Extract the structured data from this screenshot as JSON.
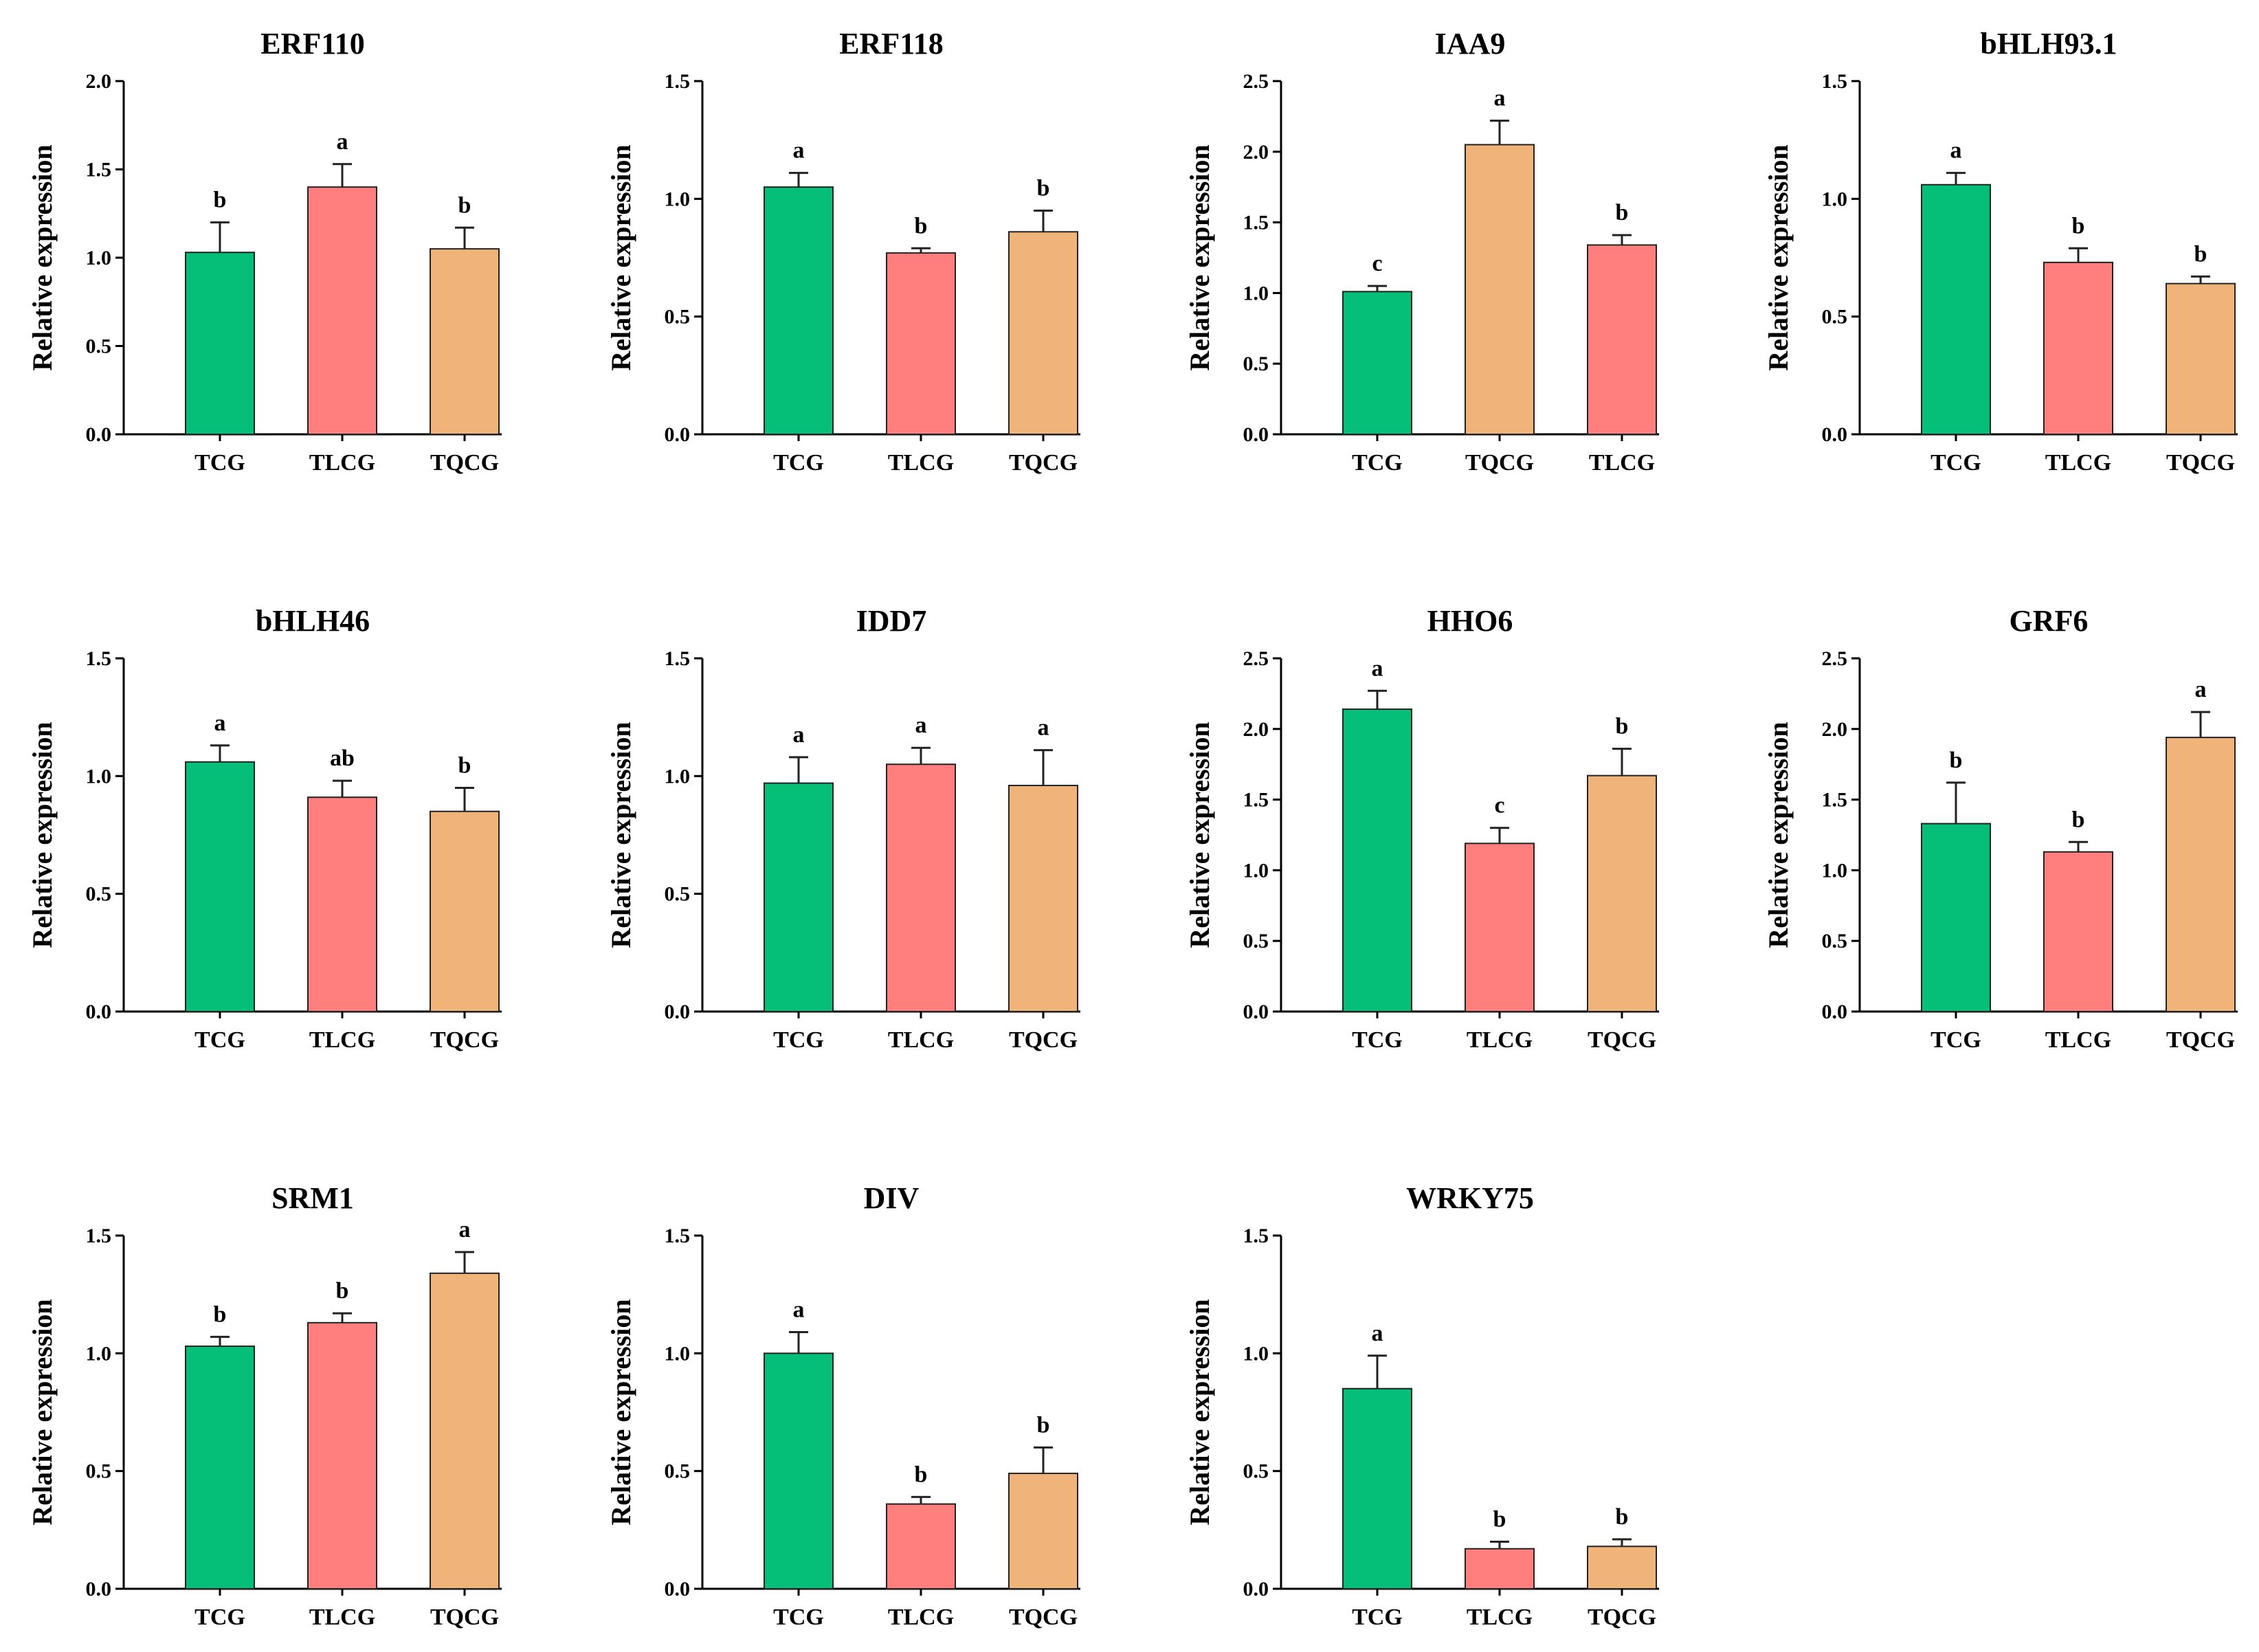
{
  "colors": {
    "TCG": "#05BE78",
    "TLCG": "#FF7F7F",
    "TQCG": "#F0B47B",
    "axis": "#000000",
    "bar_edge": "#222222"
  },
  "chart_data": [
    {
      "type": "bar",
      "title": "ERF110",
      "ylabel": "Relative expression",
      "ylim": [
        0,
        2.0
      ],
      "yticks": [
        "0.0",
        "0.5",
        "1.0",
        "1.5",
        "2.0"
      ],
      "categories": [
        "TCG",
        "TLCG",
        "TQCG"
      ],
      "values": [
        1.03,
        1.4,
        1.05
      ],
      "errors": [
        0.17,
        0.13,
        0.12
      ],
      "significance": [
        "b",
        "a",
        "b"
      ]
    },
    {
      "type": "bar",
      "title": "ERF118",
      "ylabel": "Relative expression",
      "ylim": [
        0,
        1.5
      ],
      "yticks": [
        "0.0",
        "0.5",
        "1.0",
        "1.5"
      ],
      "categories": [
        "TCG",
        "TLCG",
        "TQCG"
      ],
      "values": [
        1.05,
        0.77,
        0.86
      ],
      "errors": [
        0.06,
        0.02,
        0.09
      ],
      "significance": [
        "a",
        "b",
        "b"
      ]
    },
    {
      "type": "bar",
      "title": "IAA9",
      "ylabel": "Relative expression",
      "ylim": [
        0,
        2.5
      ],
      "yticks": [
        "0.0",
        "0.5",
        "1.0",
        "1.5",
        "2.0",
        "2.5"
      ],
      "categories": [
        "TCG",
        "TQCG",
        "TLCG"
      ],
      "values": [
        1.01,
        2.05,
        1.34
      ],
      "errors": [
        0.04,
        0.17,
        0.07
      ],
      "significance": [
        "c",
        "a",
        "b"
      ]
    },
    {
      "type": "bar",
      "title": "bHLH93.1",
      "ylabel": "Relative expression",
      "ylim": [
        0,
        1.5
      ],
      "yticks": [
        "0.0",
        "0.5",
        "1.0",
        "1.5"
      ],
      "categories": [
        "TCG",
        "TLCG",
        "TQCG"
      ],
      "values": [
        1.06,
        0.73,
        0.64
      ],
      "errors": [
        0.05,
        0.06,
        0.03
      ],
      "significance": [
        "a",
        "b",
        "b"
      ]
    },
    {
      "type": "bar",
      "title": "bHLH46",
      "ylabel": "Relative expression",
      "ylim": [
        0,
        1.5
      ],
      "yticks": [
        "0.0",
        "0.5",
        "1.0",
        "1.5"
      ],
      "categories": [
        "TCG",
        "TLCG",
        "TQCG"
      ],
      "values": [
        1.06,
        0.91,
        0.85
      ],
      "errors": [
        0.07,
        0.07,
        0.1
      ],
      "significance": [
        "a",
        "ab",
        "b"
      ]
    },
    {
      "type": "bar",
      "title": "IDD7",
      "ylabel": "Relative expression",
      "ylim": [
        0,
        1.5
      ],
      "yticks": [
        "0.0",
        "0.5",
        "1.0",
        "1.5"
      ],
      "categories": [
        "TCG",
        "TLCG",
        "TQCG"
      ],
      "values": [
        0.97,
        1.05,
        0.96
      ],
      "errors": [
        0.11,
        0.07,
        0.15
      ],
      "significance": [
        "a",
        "a",
        "a"
      ]
    },
    {
      "type": "bar",
      "title": "HHO6",
      "ylabel": "Relative expression",
      "ylim": [
        0,
        2.5
      ],
      "yticks": [
        "0.0",
        "0.5",
        "1.0",
        "1.5",
        "2.0",
        "2.5"
      ],
      "categories": [
        "TCG",
        "TLCG",
        "TQCG"
      ],
      "values": [
        2.14,
        1.19,
        1.67
      ],
      "errors": [
        0.13,
        0.11,
        0.19
      ],
      "significance": [
        "a",
        "c",
        "b"
      ]
    },
    {
      "type": "bar",
      "title": "GRF6",
      "ylabel": "Relative expression",
      "ylim": [
        0,
        2.5
      ],
      "yticks": [
        "0.0",
        "0.5",
        "1.0",
        "1.5",
        "2.0",
        "2.5"
      ],
      "categories": [
        "TCG",
        "TLCG",
        "TQCG"
      ],
      "values": [
        1.33,
        1.13,
        1.94
      ],
      "errors": [
        0.29,
        0.07,
        0.18
      ],
      "significance": [
        "b",
        "b",
        "a"
      ]
    },
    {
      "type": "bar",
      "title": "SRM1",
      "ylabel": "Relative expression",
      "ylim": [
        0,
        1.5
      ],
      "yticks": [
        "0.0",
        "0.5",
        "1.0",
        "1.5"
      ],
      "categories": [
        "TCG",
        "TLCG",
        "TQCG"
      ],
      "values": [
        1.03,
        1.13,
        1.34
      ],
      "errors": [
        0.04,
        0.04,
        0.09
      ],
      "significance": [
        "b",
        "b",
        "a"
      ]
    },
    {
      "type": "bar",
      "title": "DIV",
      "ylabel": "Relative expression",
      "ylim": [
        0,
        1.5
      ],
      "yticks": [
        "0.0",
        "0.5",
        "1.0",
        "1.5"
      ],
      "categories": [
        "TCG",
        "TLCG",
        "TQCG"
      ],
      "values": [
        1.0,
        0.36,
        0.49
      ],
      "errors": [
        0.09,
        0.03,
        0.11
      ],
      "significance": [
        "a",
        "b",
        "b"
      ]
    },
    {
      "type": "bar",
      "title": "WRKY75",
      "ylabel": "Relative expression",
      "ylim": [
        0,
        1.5
      ],
      "yticks": [
        "0.0",
        "0.5",
        "1.0",
        "1.5"
      ],
      "categories": [
        "TCG",
        "TLCG",
        "TQCG"
      ],
      "values": [
        0.85,
        0.17,
        0.18
      ],
      "errors": [
        0.14,
        0.03,
        0.03
      ],
      "significance": [
        "a",
        "b",
        "b"
      ]
    }
  ]
}
